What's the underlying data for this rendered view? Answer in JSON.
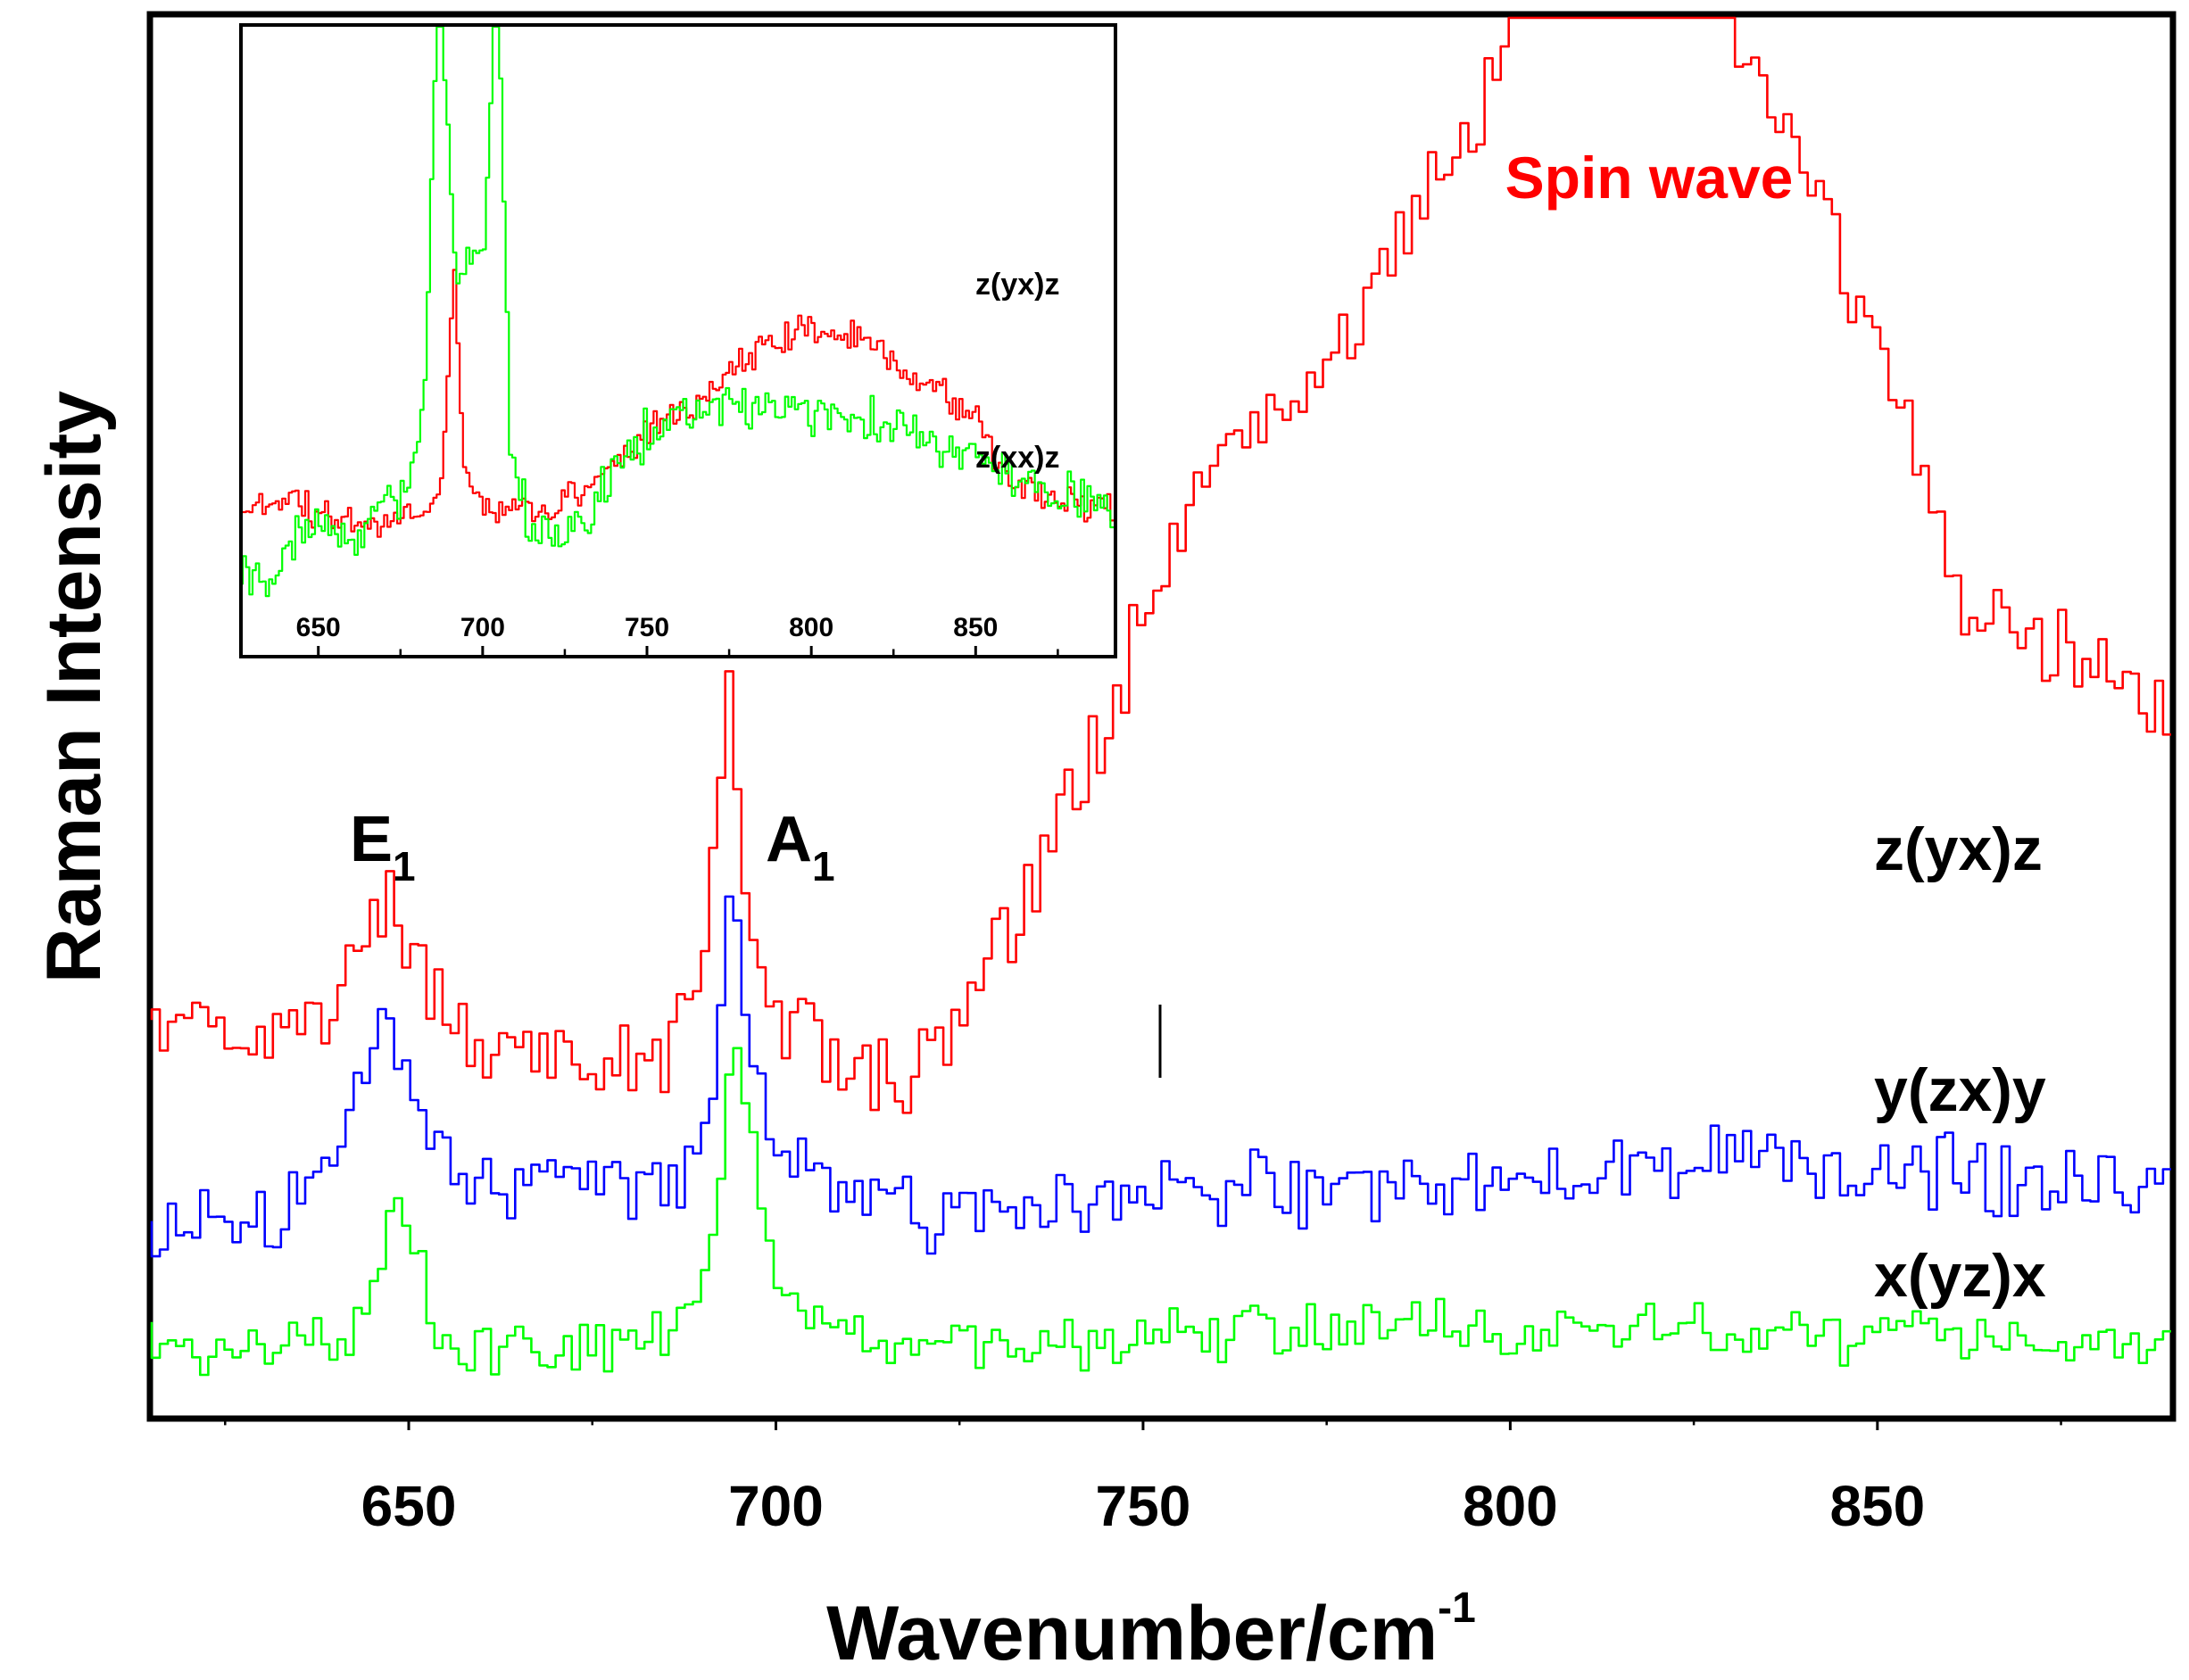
{
  "colors": {
    "red": "#ff0000",
    "blue": "#0000ff",
    "green": "#00ff00",
    "axis": "#000000"
  },
  "chart_data": [
    {
      "id": "main",
      "type": "line",
      "title": "",
      "xlabel": "Wavenumber/cm",
      "xlabel_superscript": "-1",
      "ylabel": "Raman Intensity",
      "xlim": [
        615,
        890
      ],
      "ylim": [
        0,
        100
      ],
      "xticks": [
        650,
        700,
        750,
        800,
        850
      ],
      "xtick_labels": [
        "650",
        "700",
        "750",
        "800",
        "850"
      ],
      "yticks_shown": false,
      "series": [
        {
          "name": "z(yx)z",
          "color": "#ff0000",
          "offset": 27.5,
          "noise": 2.5,
          "points": [
            [
              615,
              0
            ],
            [
              630,
              0
            ],
            [
              640,
              2
            ],
            [
              648,
              9
            ],
            [
              655,
              2
            ],
            [
              662,
              -1
            ],
            [
              675,
              -3
            ],
            [
              685,
              -2
            ],
            [
              690,
              2
            ],
            [
              694,
              25
            ],
            [
              697,
              6
            ],
            [
              700,
              1
            ],
            [
              710,
              -2
            ],
            [
              718,
              -4
            ],
            [
              725,
              0
            ],
            [
              735,
              10
            ],
            [
              745,
              22
            ],
            [
              755,
              35
            ],
            [
              765,
              43
            ],
            [
              775,
              47
            ],
            [
              785,
              55
            ],
            [
              795,
              65
            ],
            [
              805,
              78
            ],
            [
              812,
              82
            ],
            [
              820,
              81
            ],
            [
              830,
              73
            ],
            [
              840,
              63
            ],
            [
              848,
              52
            ],
            [
              855,
              43
            ],
            [
              862,
              32
            ],
            [
              868,
              29
            ],
            [
              875,
              28
            ],
            [
              882,
              26
            ],
            [
              890,
              23
            ]
          ]
        },
        {
          "name": "y(zx)y",
          "color": "#0000ff",
          "offset": 13.5,
          "noise": 2.2,
          "points": [
            [
              615,
              0
            ],
            [
              630,
              0
            ],
            [
              640,
              3
            ],
            [
              647,
              15
            ],
            [
              652,
              7
            ],
            [
              658,
              3
            ],
            [
              675,
              3
            ],
            [
              688,
              3
            ],
            [
              692,
              8
            ],
            [
              694,
              24
            ],
            [
              697,
              12
            ],
            [
              700,
              6
            ],
            [
              706,
              3
            ],
            [
              720,
              1
            ],
            [
              740,
              1
            ],
            [
              760,
              3
            ],
            [
              780,
              2
            ],
            [
              800,
              3
            ],
            [
              820,
              5
            ],
            [
              840,
              5
            ],
            [
              860,
              4
            ],
            [
              875,
              3
            ],
            [
              890,
              2
            ]
          ]
        },
        {
          "name": "x(yz)x",
          "color": "#00ff00",
          "offset": 5.0,
          "noise": 1.6,
          "points": [
            [
              615,
              0
            ],
            [
              635,
              0
            ],
            [
              642,
              0
            ],
            [
              646,
              5
            ],
            [
              649,
              11
            ],
            [
              652,
              6
            ],
            [
              656,
              0
            ],
            [
              680,
              0
            ],
            [
              688,
              2
            ],
            [
              692,
              6
            ],
            [
              695,
              23
            ],
            [
              698,
              12
            ],
            [
              702,
              3
            ],
            [
              708,
              1
            ],
            [
              730,
              0
            ],
            [
              760,
              1
            ],
            [
              800,
              1
            ],
            [
              840,
              1
            ],
            [
              890,
              0
            ]
          ]
        }
      ],
      "annotations": [
        {
          "text": "E",
          "subscript": "1",
          "x": 646
        },
        {
          "text": "A",
          "subscript": "1",
          "x": 697
        },
        {
          "text": "Spin wave",
          "x": 819,
          "color": "#ff0000"
        }
      ],
      "legend_labels": [
        "z(yx)z",
        "y(zx)y",
        "x(yz)x"
      ]
    },
    {
      "id": "inset",
      "type": "line",
      "xlim": [
        627,
        892
      ],
      "ylim": [
        0,
        100
      ],
      "xticks": [
        650,
        700,
        750,
        800,
        850
      ],
      "xtick_labels": [
        "650",
        "700",
        "750",
        "800",
        "850"
      ],
      "series": [
        {
          "name": "z(yx)z",
          "color": "#ff0000",
          "offset": 23.0,
          "noise": 2.0,
          "points": [
            [
              627,
              0
            ],
            [
              638,
              1
            ],
            [
              643,
              3
            ],
            [
              648,
              0
            ],
            [
              660,
              -2
            ],
            [
              675,
              -2
            ],
            [
              688,
              3
            ],
            [
              692,
              37
            ],
            [
              695,
              7
            ],
            [
              700,
              2
            ],
            [
              705,
              0
            ],
            [
              720,
              0
            ],
            [
              735,
              5
            ],
            [
              750,
              12
            ],
            [
              765,
              17
            ],
            [
              780,
              24
            ],
            [
              800,
              29
            ],
            [
              815,
              28
            ],
            [
              830,
              21
            ],
            [
              843,
              18
            ],
            [
              851,
              14
            ],
            [
              860,
              5
            ],
            [
              875,
              2
            ],
            [
              892,
              0
            ]
          ]
        },
        {
          "name": "z(xx)z",
          "color": "#00ff00",
          "offset": 12.0,
          "noise": 3.0,
          "points": [
            [
              627,
              0
            ],
            [
              638,
              0
            ],
            [
              643,
              7
            ],
            [
              650,
              8
            ],
            [
              665,
              8
            ],
            [
              678,
              14
            ],
            [
              683,
              30
            ],
            [
              687,
              100
            ],
            [
              692,
              50
            ],
            [
              697,
              50
            ],
            [
              701,
              52
            ],
            [
              705,
              100
            ],
            [
              709,
              22
            ],
            [
              714,
              10
            ],
            [
              722,
              6
            ],
            [
              732,
              10
            ],
            [
              745,
              21
            ],
            [
              755,
              25
            ],
            [
              770,
              28
            ],
            [
              800,
              26
            ],
            [
              820,
              25
            ],
            [
              840,
              22
            ],
            [
              860,
              17
            ],
            [
              875,
              14
            ],
            [
              892,
              11
            ]
          ]
        }
      ],
      "legend_labels": [
        "z(yx)z",
        "z(xx)z"
      ]
    }
  ]
}
